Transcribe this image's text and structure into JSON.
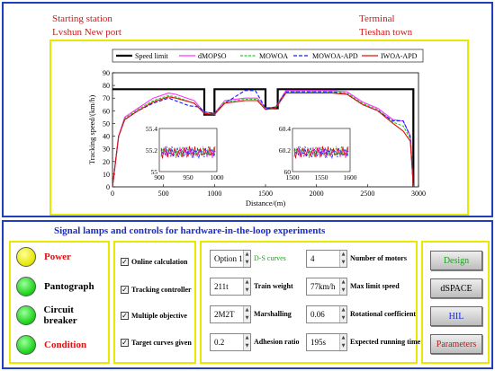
{
  "stations": {
    "start_label": "Starting station",
    "start_name": "Lvshun New port",
    "end_label": "Terminal",
    "end_name": "Tieshan town"
  },
  "chart_data": {
    "type": "line",
    "xlabel": "Distance/(m)",
    "ylabel": "Tracking speed/(km/h)",
    "xlim": [
      0,
      3000
    ],
    "ylim": [
      0,
      90
    ],
    "xticks": [
      0,
      500,
      1000,
      1500,
      2000,
      2500,
      3000
    ],
    "yticks": [
      0,
      10,
      20,
      30,
      40,
      50,
      60,
      70,
      80,
      90
    ],
    "legend_position": "top",
    "series": [
      {
        "name": "Speed limit",
        "color": "#000000",
        "x": [
          0,
          900,
          900,
          1000,
          1000,
          1500,
          1500,
          1620,
          1620,
          2950,
          2950
        ],
        "y": [
          77,
          77,
          57,
          57,
          77,
          77,
          62,
          62,
          77,
          77,
          0
        ]
      },
      {
        "name": "dMOPSO",
        "color": "#ff33ff",
        "x": [
          0,
          30,
          60,
          120,
          250,
          400,
          550,
          620,
          800,
          900,
          1000,
          1100,
          1300,
          1420,
          1500,
          1600,
          1700,
          1900,
          2150,
          2300,
          2450,
          2600,
          2750,
          2850,
          2920,
          2950
        ],
        "y": [
          0,
          20,
          40,
          55,
          62,
          70,
          74,
          73,
          68,
          59,
          58,
          68,
          70,
          70,
          62,
          63,
          76,
          76,
          76,
          75,
          67,
          62,
          53,
          52,
          40,
          0
        ]
      },
      {
        "name": "MOWOA",
        "color": "#22cc22",
        "x": [
          0,
          30,
          60,
          120,
          250,
          400,
          550,
          620,
          800,
          900,
          1000,
          1100,
          1300,
          1420,
          1500,
          1600,
          1700,
          1900,
          2150,
          2300,
          2450,
          2600,
          2750,
          2850,
          2920,
          2950
        ],
        "y": [
          0,
          20,
          40,
          54,
          61,
          68,
          72,
          71,
          66,
          59,
          58,
          67,
          69,
          69,
          62,
          63,
          75,
          75,
          75,
          74,
          66,
          61,
          51,
          48,
          38,
          0
        ]
      },
      {
        "name": "MOWOA-APD",
        "color": "#1a1aff",
        "x": [
          0,
          30,
          60,
          120,
          250,
          400,
          550,
          650,
          750,
          850,
          900,
          1000,
          1100,
          1300,
          1400,
          1500,
          1600,
          1700,
          1900,
          2150,
          2300,
          2450,
          2600,
          2750,
          2850,
          2920,
          2950
        ],
        "y": [
          0,
          20,
          40,
          53,
          60,
          66,
          70,
          67,
          64,
          63,
          59,
          58,
          66,
          76,
          76,
          62,
          63,
          75,
          75,
          75,
          73,
          65,
          60,
          52,
          52,
          40,
          0
        ]
      },
      {
        "name": "IWOA-APD",
        "color": "#e01010",
        "x": [
          0,
          30,
          60,
          120,
          250,
          400,
          550,
          620,
          800,
          900,
          1000,
          1100,
          1300,
          1420,
          1500,
          1600,
          1700,
          1900,
          2150,
          2300,
          2450,
          2600,
          2750,
          2850,
          2920,
          2950
        ],
        "y": [
          0,
          20,
          40,
          53,
          60,
          67,
          71,
          70,
          66,
          58,
          57,
          66,
          68,
          68,
          61,
          62,
          74,
          74,
          74,
          73,
          65,
          60,
          50,
          44,
          36,
          0
        ]
      }
    ],
    "insets": [
      {
        "xlim": [
          900,
          1000
        ],
        "ylim": [
          55,
          55.4
        ],
        "xticks": [
          900,
          950,
          1000
        ],
        "yticks": [
          55,
          55.2,
          55.4
        ]
      },
      {
        "xlim": [
          1500,
          1600
        ],
        "ylim": [
          60,
          60.4
        ],
        "xticks": [
          1500,
          1550,
          1600
        ],
        "yticks": [
          60,
          60.2,
          60.4
        ]
      }
    ]
  },
  "signal_panel": {
    "title": "Signal lamps and controls for hardware-in-the-loop experiments",
    "lamps": [
      {
        "label": "Power",
        "color": "yellow",
        "label_color": "red"
      },
      {
        "label": "Pantograph",
        "color": "green",
        "label_color": "black"
      },
      {
        "label": "Circuit breaker",
        "color": "green",
        "label_color": "black"
      },
      {
        "label": "Condition",
        "color": "green",
        "label_color": "red"
      }
    ],
    "checks": [
      {
        "label": "Online calculation",
        "checked": true
      },
      {
        "label": "Tracking controller",
        "checked": true
      },
      {
        "label": "Multiple objective",
        "checked": true
      },
      {
        "label": "Target curves given",
        "checked": true
      }
    ],
    "params": {
      "option_value": "Option 1",
      "option_label": "D-S curves",
      "motors_value": "4",
      "motors_label": "Number of motors",
      "weight_value": "211t",
      "weight_label": "Train weight",
      "speed_value": "77km/h",
      "speed_label": "Max limit speed",
      "marshal_value": "2M2T",
      "marshal_label": "Marshalling",
      "rot_value": "0.06",
      "rot_label": "Rotational coefficient",
      "adh_value": "0.2",
      "adh_label": "Adhesion ratio",
      "time_value": "195s",
      "time_label": "Expected running time"
    },
    "buttons": [
      {
        "label": "Design",
        "color": "#20a020"
      },
      {
        "label": "dSPACE",
        "color": "#000000"
      },
      {
        "label": "HIL",
        "color": "#1a2bd0"
      },
      {
        "label": "Parameters",
        "color": "#d01010"
      }
    ]
  }
}
